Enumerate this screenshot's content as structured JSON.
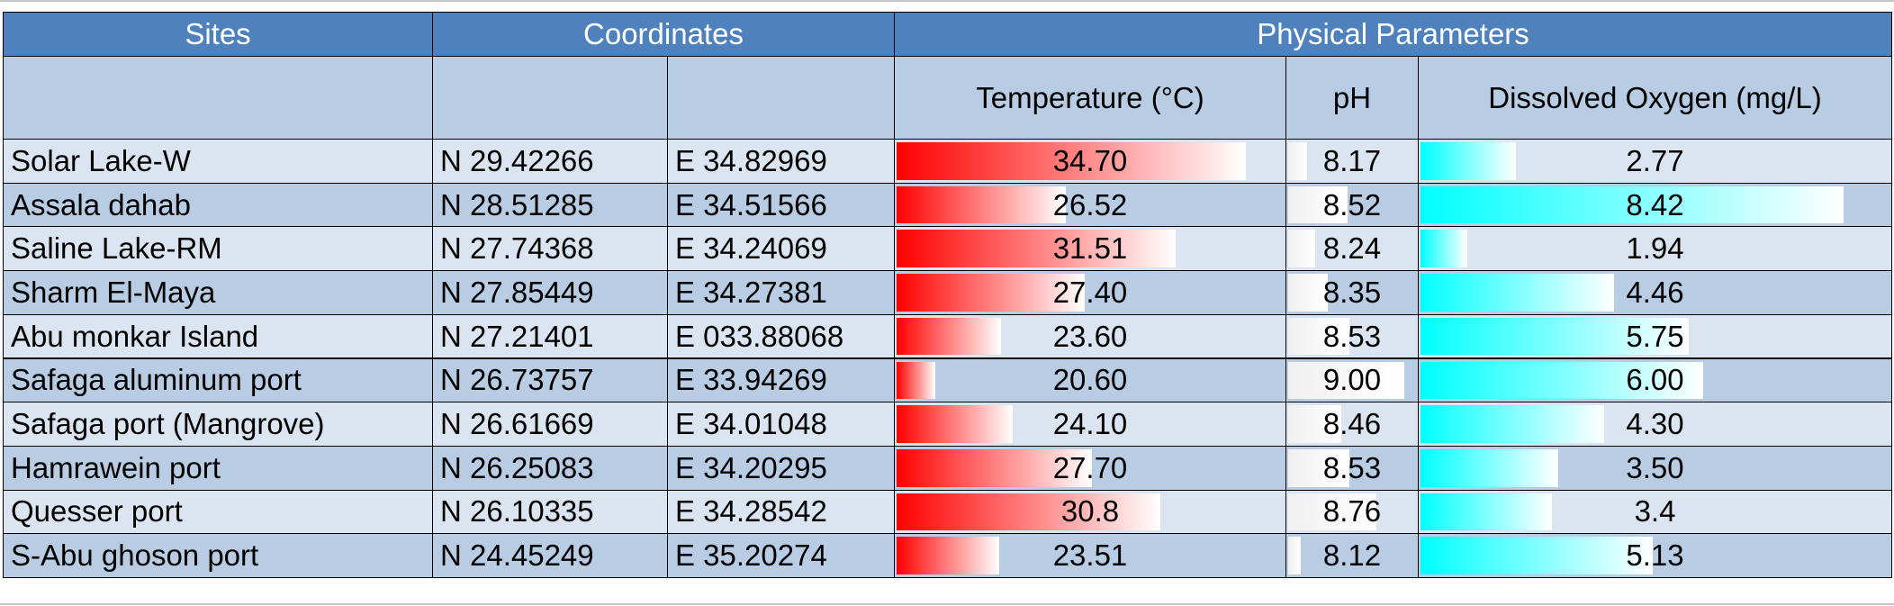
{
  "header": {
    "groups": [
      "Sites",
      "Coordinates",
      "Physical Parameters"
    ],
    "columns": [
      "Temperature (°C)",
      "pH",
      "Dissolved Oxygen (mg/L)"
    ]
  },
  "table": {
    "rows": [
      [
        "Solar Lake-W",
        "N 29.42266",
        "E 34.82969",
        "34.70",
        "8.17",
        "2.77"
      ],
      [
        "Assala dahab",
        "N 28.51285",
        "E 34.51566",
        "26.52",
        "8.52",
        "8.42"
      ],
      [
        "Saline Lake-RM",
        "N 27.74368",
        "E 34.24069",
        "31.51",
        "8.24",
        "1.94"
      ],
      [
        "Sharm El-Maya",
        "N 27.85449",
        "E 34.27381",
        "27.40",
        "8.35",
        "4.46"
      ],
      [
        "Abu monkar Island",
        "N 27.21401",
        "E 033.88068",
        "23.60",
        "8.53",
        "5.75"
      ],
      [
        "Safaga aluminum port",
        "N 26.73757",
        "E 33.94269",
        "20.60",
        "9.00",
        "6.00"
      ],
      [
        "Safaga port (Mangrove)",
        "N 26.61669",
        "E 34.01048",
        "24.10",
        "8.46",
        "4.30"
      ],
      [
        "Hamrawein port",
        "N 26.25083",
        "E 34.20295",
        "27.70",
        "8.53",
        "3.50"
      ],
      [
        "Quesser port",
        "N 26.10335",
        "E 34.28542",
        "30.8",
        "8.76",
        "3.4"
      ],
      [
        "S-Abu ghoson port",
        "N 24.45249",
        "E 35.20274",
        "23.51",
        "8.12",
        "5.13"
      ]
    ]
  }
}
